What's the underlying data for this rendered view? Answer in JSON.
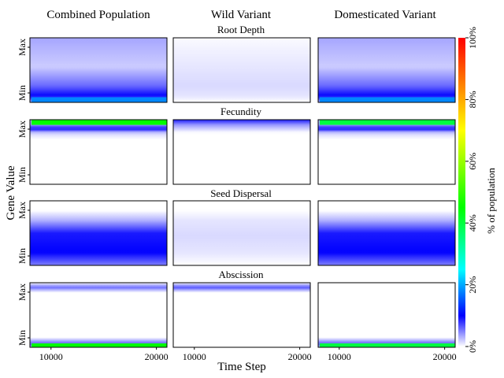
{
  "chart_data": {
    "type": "heatmap",
    "columns": [
      "Combined Population",
      "Wild Variant",
      "Domesticated Variant"
    ],
    "rows": [
      "Root Depth",
      "Fecundity",
      "Seed Dispersal",
      "Abscission"
    ],
    "xlabel": "Time Step",
    "ylabel": "Gene Value",
    "x_ticks": [
      "10000",
      "20000"
    ],
    "x_tick_values": [
      10000,
      20000
    ],
    "xlim": [
      8000,
      21000
    ],
    "y_ticks": [
      "Min",
      "Max"
    ],
    "colorbar": {
      "label": "% of population",
      "ticks": [
        "0%",
        "20%",
        "40%",
        "60%",
        "80%",
        "100%"
      ],
      "tick_values": [
        0,
        20,
        40,
        60,
        80,
        100
      ],
      "colormap": "gist_ncar_r-like",
      "colors": [
        "#ffffff",
        "#0000ff",
        "#00ffff",
        "#00ff00",
        "#ffff00",
        "#ff8000",
        "#ff0000"
      ]
    },
    "panels": [
      {
        "row": "Root Depth",
        "column": "Combined Population",
        "description_profile": [
          [
            0.0,
            0.3
          ],
          [
            0.1,
            1.0
          ],
          [
            0.25,
            0.6
          ],
          [
            0.55,
            0.2
          ],
          [
            0.85,
            0.3
          ],
          [
            1.0,
            0.35
          ]
        ],
        "bright_band": [
          0.0,
          0.08,
          18
        ]
      },
      {
        "row": "Root Depth",
        "column": "Wild Variant",
        "description_profile": [
          [
            0.0,
            0.0
          ],
          [
            0.1,
            0.1
          ],
          [
            0.25,
            0.15
          ],
          [
            1.0,
            0.02
          ]
        ],
        "bright_band": null
      },
      {
        "row": "Root Depth",
        "column": "Domesticated Variant",
        "description_profile": [
          [
            0.0,
            0.3
          ],
          [
            0.1,
            1.0
          ],
          [
            0.25,
            0.6
          ],
          [
            0.55,
            0.2
          ],
          [
            0.85,
            0.3
          ],
          [
            1.0,
            0.35
          ]
        ],
        "bright_band": [
          0.0,
          0.08,
          18
        ]
      },
      {
        "row": "Fecundity",
        "column": "Combined Population",
        "description_profile": [
          [
            0.0,
            0.0
          ],
          [
            0.7,
            0.0
          ],
          [
            0.8,
            0.2
          ],
          [
            0.86,
            1.0
          ],
          [
            0.92,
            0.4
          ],
          [
            1.0,
            0.3
          ]
        ],
        "bright_band": [
          0.92,
          1.0,
          45
        ]
      },
      {
        "row": "Fecundity",
        "column": "Wild Variant",
        "description_profile": [
          [
            0.0,
            0.0
          ],
          [
            0.8,
            0.0
          ],
          [
            0.92,
            0.4
          ],
          [
            1.0,
            0.9
          ]
        ],
        "bright_band": null
      },
      {
        "row": "Fecundity",
        "column": "Domesticated Variant",
        "description_profile": [
          [
            0.0,
            0.0
          ],
          [
            0.7,
            0.0
          ],
          [
            0.8,
            0.2
          ],
          [
            0.86,
            1.0
          ],
          [
            0.92,
            0.4
          ],
          [
            1.0,
            0.3
          ]
        ],
        "bright_band": [
          0.92,
          1.0,
          40
        ]
      },
      {
        "row": "Seed Dispersal",
        "column": "Combined Population",
        "description_profile": [
          [
            0.0,
            0.5
          ],
          [
            0.2,
            1.0
          ],
          [
            0.5,
            0.9
          ],
          [
            0.7,
            0.3
          ],
          [
            0.85,
            0.0
          ],
          [
            1.0,
            0.0
          ]
        ],
        "bright_band": null
      },
      {
        "row": "Seed Dispersal",
        "column": "Wild Variant",
        "description_profile": [
          [
            0.0,
            0.0
          ],
          [
            0.2,
            0.1
          ],
          [
            0.45,
            0.15
          ],
          [
            0.7,
            0.1
          ],
          [
            0.85,
            0.0
          ],
          [
            1.0,
            0.0
          ]
        ],
        "bright_band": null
      },
      {
        "row": "Seed Dispersal",
        "column": "Domesticated Variant",
        "description_profile": [
          [
            0.0,
            0.5
          ],
          [
            0.2,
            1.0
          ],
          [
            0.5,
            0.9
          ],
          [
            0.7,
            0.3
          ],
          [
            0.85,
            0.0
          ],
          [
            1.0,
            0.0
          ]
        ],
        "bright_band": null
      },
      {
        "row": "Abscission",
        "column": "Combined Population",
        "description_profile": [
          [
            0.0,
            0.2
          ],
          [
            0.05,
            0.7
          ],
          [
            0.15,
            0.0
          ],
          [
            0.85,
            0.0
          ],
          [
            0.93,
            0.6
          ],
          [
            1.0,
            0.0
          ]
        ],
        "bright_band": [
          0.0,
          0.06,
          45
        ]
      },
      {
        "row": "Abscission",
        "column": "Wild Variant",
        "description_profile": [
          [
            0.0,
            0.0
          ],
          [
            0.85,
            0.0
          ],
          [
            0.93,
            0.7
          ],
          [
            1.0,
            0.0
          ]
        ],
        "bright_band": null
      },
      {
        "row": "Abscission",
        "column": "Domesticated Variant",
        "description_profile": [
          [
            0.0,
            0.2
          ],
          [
            0.05,
            0.7
          ],
          [
            0.15,
            0.0
          ],
          [
            1.0,
            0.0
          ]
        ],
        "bright_band": [
          0.0,
          0.06,
          40
        ]
      }
    ]
  }
}
